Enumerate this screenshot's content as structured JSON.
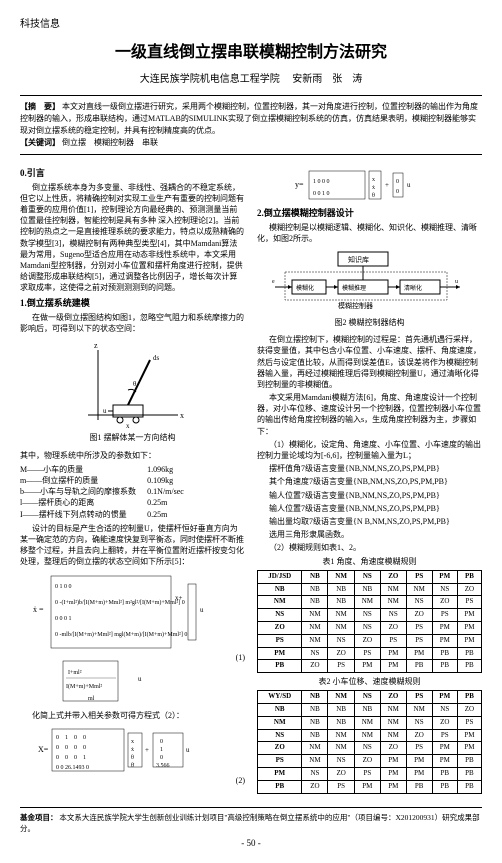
{
  "header": {
    "category": "科技信息"
  },
  "title": "一级直线倒立摆串联模糊控制方法研究",
  "affiliation": "大连民族学院机电信息工程学院",
  "authors": "安新雨　张　涛",
  "abstract": {
    "label": "【摘　要】",
    "text": "本文对直线一级倒立摆进行研究，采用两个模糊控制，位置控制器，其一对角度进行控制，位置控制器的输出作为角度控制器的输入，形成串联结构，通过MATLAB的SIMULINK实现了倒立摆模糊控制系统的仿真，仿真结果表明，模糊控制器能够实现对倒立摆系统的稳定控制，并具有控制精度高的优点。",
    "kw_label": "【关键词】",
    "keywords": "倒立摆　模糊控制器　串联"
  },
  "sec0": {
    "title": "0.引言",
    "p1": "倒立摆系统本身为多变量、非线性、强耦合的不稳定系统，但它以上性质，将精确控制对实现工业生产有重要的控制问题有着重要的应用价值[1]，控制理论方向最经典的、预测测量当前位置最佳控制器，智能控制是具有多种 深入控制理论[2]。当前控制的热点之一是直接推理系统的要求能力，特点以成熟精确的数学模型[3]，模糊控制有两种典型类型[4]，其中Mamdani算法最为常用，Sugeno型适合应用在动态非线性系统中，本文采用Mamdani型控制器，分别对小车位置和摆杆角度进行控制，提供给调整形成串联结构[5]，通过调整各比例因子，增长每次计算求取成率，这使得之前对预测测测到的问题。"
  },
  "sec1": {
    "title": "1.倒立摆系统建模",
    "p1": "在做一级倒立摆图结构如图1，忽略空气阻力和系统摩擦力的影响后，可得到以下的状态空间：",
    "fig1_caption": "图1 摆解体某一方向结构",
    "intro": "其中，物理系统中所涉及的参数如下：",
    "params": [
      {
        "k": "M——小车的质量",
        "v": "1.096kg"
      },
      {
        "k": "m——倒立摆杆的质量",
        "v": "0.109kg"
      },
      {
        "k": "b——小车与导轨之间的摩擦系数",
        "v": "0.1N/m/sec"
      },
      {
        "k": "l——摆杆质心的距离",
        "v": "0.25m"
      },
      {
        "k": "I——摆杆线下列点转动的惯量",
        "v": "0.25m"
      }
    ],
    "p2": "设计的目标是产生合适的控制量U，使摆杆恒好垂直方向为某一确定范的方向，确能速度快复到平衡态，同时使摆杆不断推移整个过程，并且去向上翻转，并在平衡位置附近摆杆按变匀化处理，整理后的倒立摆的状态空间如下所示[5]：",
    "eq1_num": "(1)",
    "p3": "化简上式并带入相关参数可得方程式（2）：",
    "eq2_num": "(2)"
  },
  "sec2": {
    "title": "2.倒立摆模糊控制器设计",
    "p1": "模糊控制是以模糊逻辑、模糊化、知识化、模糊推理、清晰化，如图2所示。",
    "fig2_caption": "图2 模糊控制器结构",
    "p2": "在倒立摆控制下，模糊控制的过程是：首先通机遇行采样，获得变量值，其中包含小车位置、小车速度、摆杆、角度速度，然后与设定值比较，从而得到误差值E，该误差将作为模糊控制器输入量，再经过模糊推理后得到模糊控制量U，通过清晰化得到控制量的非模糊值。",
    "p3": "本文采用Mamdani模糊方法[6]，角度、角速度设计一个控制器，对小车位移、速度设计另一个控制器，位置控制器小车位置的输出传给角度控制器的输入s，生成角度控制器为主，步骤如下：",
    "steps": [
      "（1）模糊化，设定角、角速度、小车位置、小车速度的输出控制力量论域均为[-6,6]，控制量输入量为L；",
      "摆杆值角7级语言变量{NB,NM,NS,ZO,PS,PM,PB}",
      "其个角速度7级语言变量{NB,NM,NS,ZO,PS,PM,PB}",
      "输人位置7级语言变量{NB,NM,NS,ZO,PS,PM,PB}",
      "输人位置7级语言变量{NB,NM,NS,ZO,PS,PM,PB}",
      "输出量均取7级语言变量{N B,NM,NS,ZO,PS,PM,PB}",
      "选用三角形隶属函数。",
      "（2）模糊规则如表1、2。"
    ]
  },
  "tables": {
    "t1_caption": "表1 角度、角速度模糊规则",
    "t2_caption": "表2 小车位移、速度模糊规则",
    "headers": [
      "",
      "NB",
      "NM",
      "NS",
      "ZO",
      "PS",
      "PM",
      "PB"
    ],
    "t1_rowhead": "JD/JSD",
    "t2_rowhead": "WY/SD",
    "t1_rows": [
      [
        "NB",
        "NB",
        "NB",
        "NB",
        "NM",
        "NM",
        "NS",
        "ZO"
      ],
      [
        "NM",
        "NB",
        "NB",
        "NM",
        "NM",
        "NS",
        "ZO",
        "PS"
      ],
      [
        "NS",
        "NM",
        "NM",
        "NS",
        "NS",
        "ZO",
        "PS",
        "PM"
      ],
      [
        "ZO",
        "NM",
        "NM",
        "NS",
        "ZO",
        "PS",
        "PM",
        "PM"
      ],
      [
        "PS",
        "NM",
        "NS",
        "ZO",
        "PS",
        "PS",
        "PM",
        "PM"
      ],
      [
        "PM",
        "NS",
        "ZO",
        "PS",
        "PM",
        "PM",
        "PB",
        "PB"
      ],
      [
        "PB",
        "ZO",
        "PS",
        "PM",
        "PM",
        "PB",
        "PB",
        "PB"
      ]
    ],
    "t2_rows": [
      [
        "NB",
        "NB",
        "NB",
        "NB",
        "NM",
        "NM",
        "NS",
        "ZO"
      ],
      [
        "NM",
        "NB",
        "NB",
        "NM",
        "NM",
        "NS",
        "ZO",
        "PS"
      ],
      [
        "NS",
        "NB",
        "NM",
        "NM",
        "NM",
        "ZO",
        "PS",
        "PM"
      ],
      [
        "ZO",
        "NM",
        "NM",
        "NS",
        "ZO",
        "PS",
        "PM",
        "PM"
      ],
      [
        "PS",
        "NM",
        "NS",
        "ZO",
        "PM",
        "PM",
        "PM",
        "PB"
      ],
      [
        "PM",
        "NS",
        "ZO",
        "PS",
        "PM",
        "PM",
        "PB",
        "PB"
      ],
      [
        "PB",
        "ZO",
        "PS",
        "PM",
        "PM",
        "PB",
        "PB",
        "PB"
      ]
    ]
  },
  "footer": {
    "label": "基金项目：",
    "text": "本文系大连民族学院大学生创新创业训练计划项目\"高级控制策略在倒立摆系统中的应用\"（项目编号：X201200931）研究成果部分。"
  },
  "page_num": "- 50 -",
  "colors": {
    "text": "#000000",
    "bg": "#ffffff",
    "border": "#000000"
  }
}
